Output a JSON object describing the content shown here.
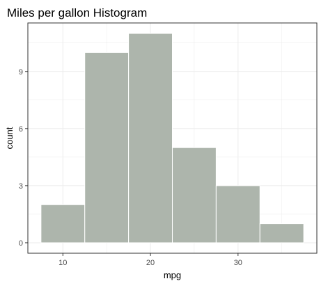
{
  "chart_data": {
    "type": "bar",
    "subtype": "histogram",
    "title": "Miles per gallon Histogram",
    "xlabel": "mpg",
    "ylabel": "count",
    "bins": [
      {
        "x0": 7.5,
        "x1": 12.5,
        "count": 2
      },
      {
        "x0": 12.5,
        "x1": 17.5,
        "count": 10
      },
      {
        "x0": 17.5,
        "x1": 22.5,
        "count": 11
      },
      {
        "x0": 22.5,
        "x1": 27.5,
        "count": 5
      },
      {
        "x0": 27.5,
        "x1": 32.5,
        "count": 3
      },
      {
        "x0": 32.5,
        "x1": 37.5,
        "count": 1
      }
    ],
    "xlim": [
      6.0,
      39.0
    ],
    "ylim": [
      -0.55,
      11.55
    ],
    "xticks": [
      10,
      20,
      30
    ],
    "yticks": [
      0,
      3,
      6,
      9
    ],
    "grid": true,
    "colors": {
      "bar_fill": "#adb5ac",
      "bar_border": "#ffffff",
      "grid": "#ebebeb",
      "panel_border": "#333333"
    }
  }
}
